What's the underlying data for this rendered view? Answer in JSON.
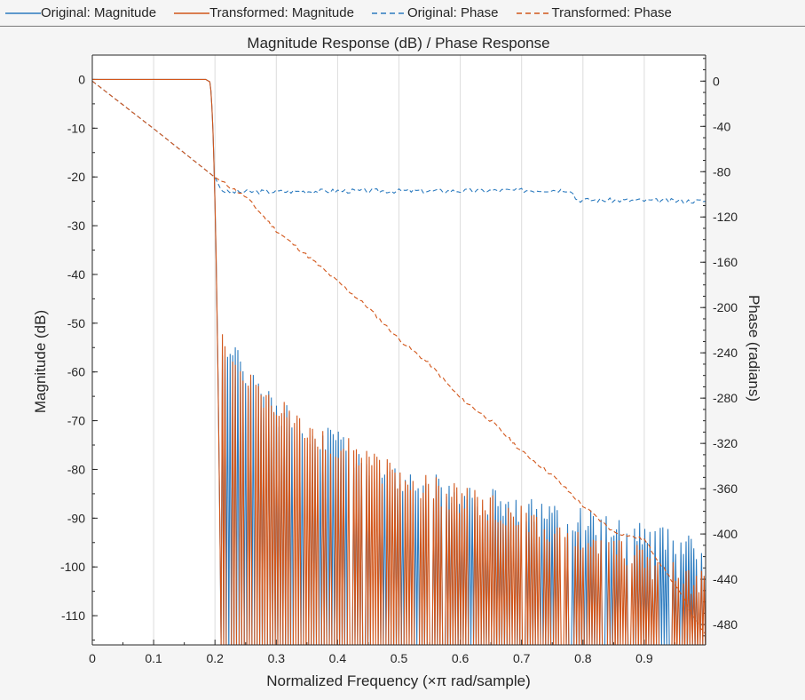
{
  "legend": [
    {
      "label": "Original: Magnitude",
      "color": "#2c7bbf",
      "style": "solid"
    },
    {
      "label": "Transformed: Magnitude",
      "color": "#d2561a",
      "style": "solid"
    },
    {
      "label": "Original: Phase",
      "color": "#2c7bbf",
      "style": "dashed"
    },
    {
      "label": "Transformed: Phase",
      "color": "#d2561a",
      "style": "dashed"
    }
  ],
  "chart_data": {
    "type": "line",
    "title": "Magnitude Response (dB) / Phase Response",
    "xlabel": "Normalized Frequency (×π rad/sample)",
    "ylabel_left": "Magnitude (dB)",
    "ylabel_right": "Phase (radians)",
    "xlim": [
      0,
      1
    ],
    "ylim_left": [
      -116,
      5
    ],
    "ylim_right": [
      -498,
      23
    ],
    "x_ticks": [
      "0",
      "0.1",
      "0.2",
      "0.3",
      "0.4",
      "0.5",
      "0.6",
      "0.7",
      "0.8",
      "0.9"
    ],
    "y_ticks_left": [
      "0",
      "-10",
      "-20",
      "-30",
      "-40",
      "-50",
      "-60",
      "-70",
      "-80",
      "-90",
      "-100",
      "-110"
    ],
    "y_ticks_right": [
      "0",
      "-40",
      "-80",
      "-120",
      "-160",
      "-200",
      "-240",
      "-280",
      "-320",
      "-360",
      "-400",
      "-440",
      "-480"
    ],
    "grid": "vertical",
    "series": [
      {
        "name": "Original: Magnitude",
        "axis": "left",
        "color": "#2c7bbf",
        "style": "solid",
        "passband_edge": 0.19,
        "stopband_start": 0.21,
        "envelope": {
          "x": [
            0.21,
            0.3,
            0.5,
            0.7,
            0.9,
            1.0
          ],
          "peak": [
            -54,
            -68,
            -82,
            -88,
            -93,
            -96
          ],
          "trough": -116
        }
      },
      {
        "name": "Transformed: Magnitude",
        "axis": "left",
        "color": "#d2561a",
        "style": "solid",
        "passband_edge": 0.19,
        "stopband_start": 0.21,
        "envelope": {
          "x": [
            0.21,
            0.3,
            0.5,
            0.7,
            0.9,
            1.0
          ],
          "peak": [
            -54,
            -68,
            -82,
            -90,
            -99,
            -104
          ],
          "trough": -116
        }
      },
      {
        "name": "Original: Phase",
        "axis": "right",
        "color": "#2c7bbf",
        "style": "dashed",
        "x": [
          0,
          0.1,
          0.2,
          0.21,
          0.22,
          0.4,
          0.6,
          0.78,
          0.79,
          1.0
        ],
        "y": [
          0,
          -42,
          -85,
          -96,
          -98,
          -97,
          -97,
          -96,
          -105,
          -106
        ]
      },
      {
        "name": "Transformed: Phase",
        "axis": "right",
        "color": "#d2561a",
        "style": "dashed",
        "x": [
          0,
          0.1,
          0.2,
          0.25,
          0.3,
          0.35,
          0.4,
          0.45,
          0.5,
          0.55,
          0.6,
          0.65,
          0.7,
          0.75,
          0.8,
          0.85,
          0.9,
          0.95,
          1.0
        ],
        "y": [
          0,
          -42,
          -85,
          -102,
          -132,
          -154,
          -177,
          -200,
          -228,
          -250,
          -280,
          -300,
          -327,
          -348,
          -375,
          -398,
          -405,
          -445,
          -490
        ]
      }
    ]
  }
}
